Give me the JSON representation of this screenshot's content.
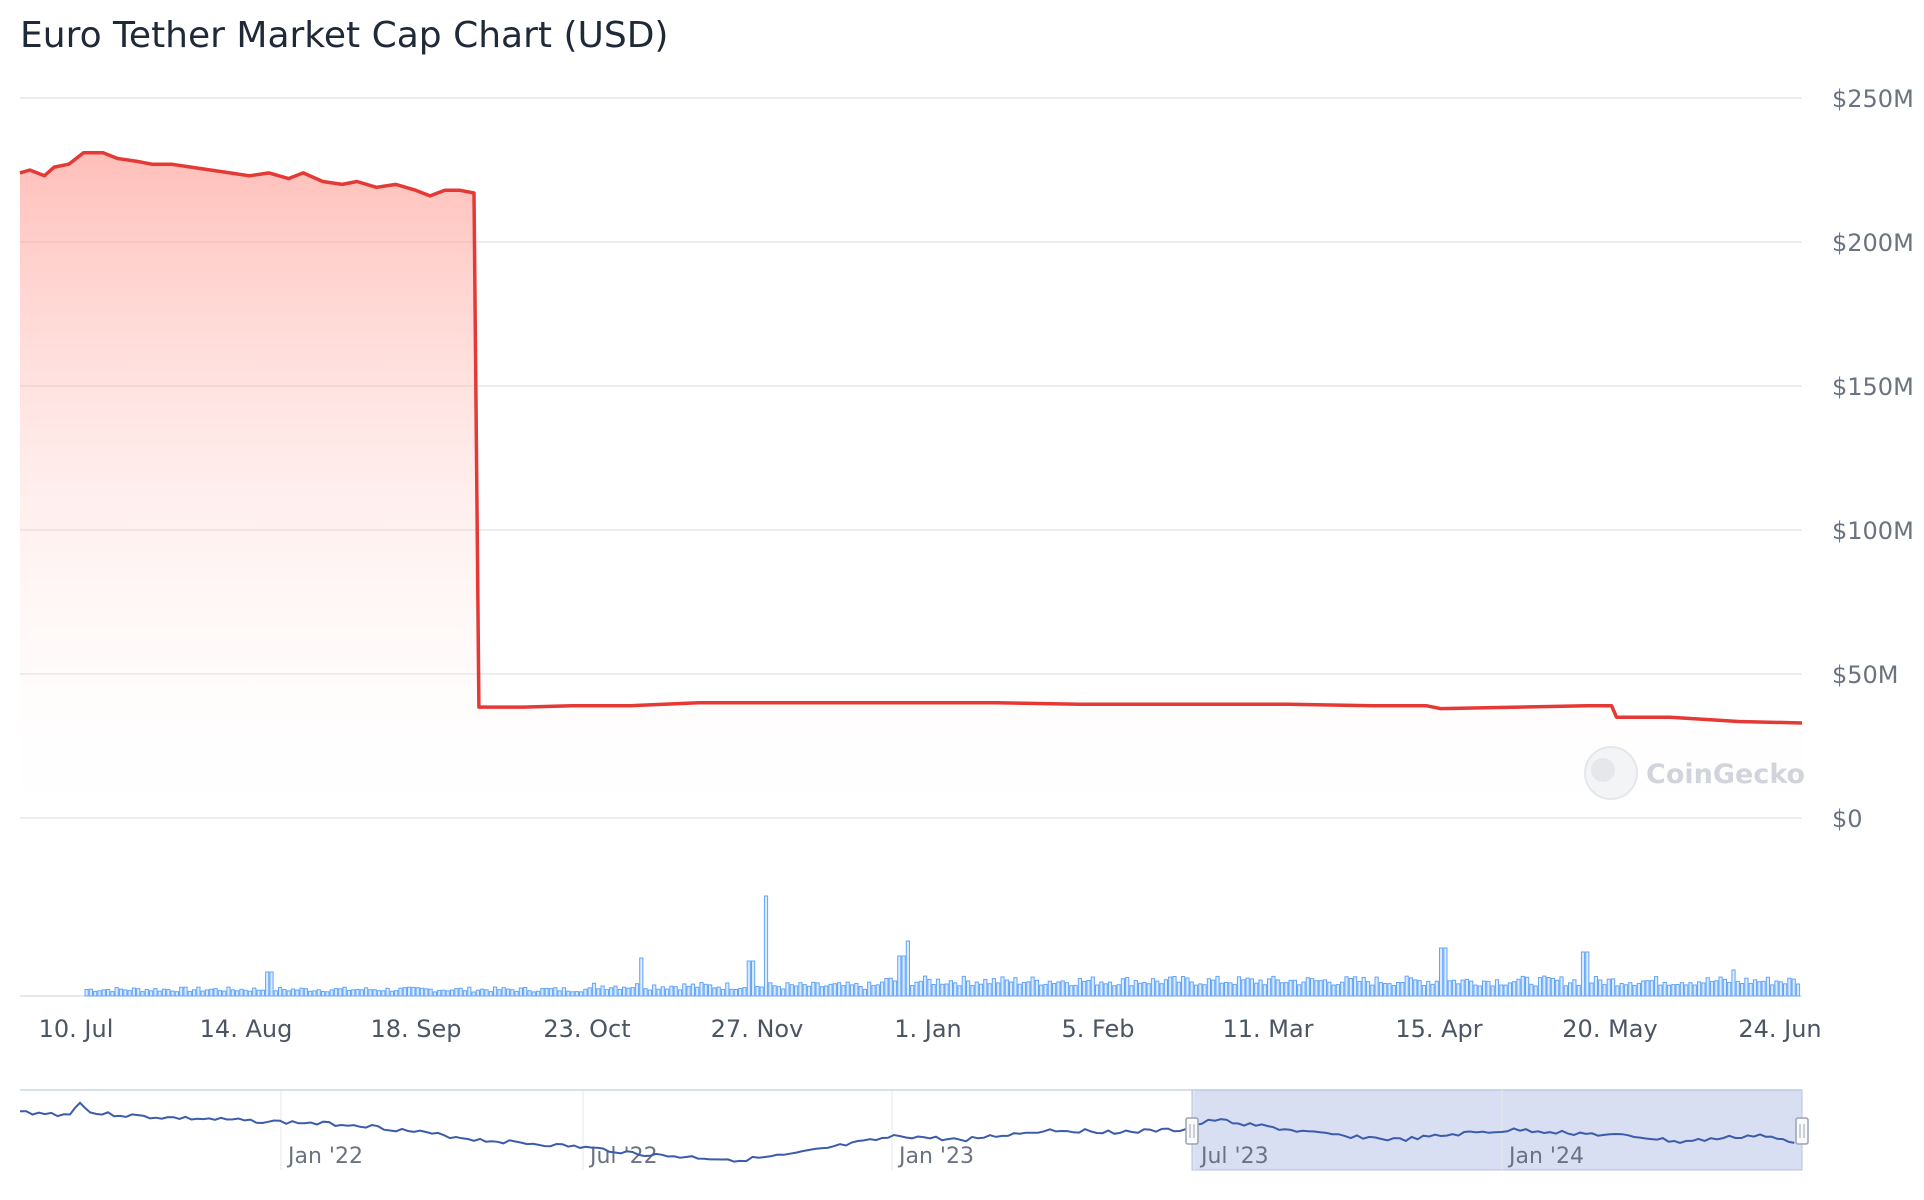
{
  "chart_data": {
    "type": "area",
    "title": "Euro Tether Market Cap Chart (USD)",
    "xlabel": "",
    "ylabel": "",
    "ylim": [
      0,
      250
    ],
    "y_unit": "M USD",
    "y_ticks": [
      "$0",
      "$50M",
      "$100M",
      "$150M",
      "$200M",
      "$250M"
    ],
    "y_tick_values": [
      0,
      50,
      100,
      150,
      200,
      250
    ],
    "x_ticks": [
      "10. Jul",
      "14. Aug",
      "18. Sep",
      "23. Oct",
      "27. Nov",
      "1. Jan",
      "5. Feb",
      "11. Mar",
      "15. Apr",
      "20. May",
      "24. Jun"
    ],
    "x_tick_dates": [
      "2023-07-10",
      "2023-08-14",
      "2023-09-18",
      "2023-10-23",
      "2023-11-27",
      "2024-01-01",
      "2024-02-05",
      "2024-03-11",
      "2024-04-15",
      "2024-05-20",
      "2024-06-24"
    ],
    "x_range": [
      "2023-06-29",
      "2024-06-28"
    ],
    "grid": true,
    "legend": "none",
    "series": [
      {
        "values_unit": "M USD",
        "color": "#e53935",
        "points": [
          [
            "2023-06-29",
            224
          ],
          [
            "2023-07-01",
            225
          ],
          [
            "2023-07-04",
            223
          ],
          [
            "2023-07-06",
            226
          ],
          [
            "2023-07-09",
            227
          ],
          [
            "2023-07-12",
            231
          ],
          [
            "2023-07-16",
            231
          ],
          [
            "2023-07-19",
            229
          ],
          [
            "2023-07-23",
            228
          ],
          [
            "2023-07-26",
            227
          ],
          [
            "2023-07-30",
            227
          ],
          [
            "2023-08-03",
            226
          ],
          [
            "2023-08-07",
            225
          ],
          [
            "2023-08-11",
            224
          ],
          [
            "2023-08-15",
            223
          ],
          [
            "2023-08-19",
            224
          ],
          [
            "2023-08-23",
            222
          ],
          [
            "2023-08-26",
            224
          ],
          [
            "2023-08-30",
            221
          ],
          [
            "2023-09-03",
            220
          ],
          [
            "2023-09-06",
            221
          ],
          [
            "2023-09-10",
            219
          ],
          [
            "2023-09-14",
            220
          ],
          [
            "2023-09-18",
            218
          ],
          [
            "2023-09-21",
            216
          ],
          [
            "2023-09-24",
            218
          ],
          [
            "2023-09-27",
            218
          ],
          [
            "2023-09-30",
            217
          ],
          [
            "2023-10-01",
            38.5
          ],
          [
            "2023-10-10",
            38.5
          ],
          [
            "2023-10-20",
            39
          ],
          [
            "2023-11-01",
            39
          ],
          [
            "2023-11-15",
            40
          ],
          [
            "2023-12-01",
            40
          ],
          [
            "2023-12-15",
            40
          ],
          [
            "2024-01-01",
            40
          ],
          [
            "2024-01-15",
            40
          ],
          [
            "2024-02-01",
            39.5
          ],
          [
            "2024-02-15",
            39.5
          ],
          [
            "2024-03-01",
            39.5
          ],
          [
            "2024-03-15",
            39.5
          ],
          [
            "2024-04-01",
            39
          ],
          [
            "2024-04-12",
            39
          ],
          [
            "2024-04-15",
            38
          ],
          [
            "2024-05-01",
            38.5
          ],
          [
            "2024-05-15",
            39
          ],
          [
            "2024-05-20",
            39
          ],
          [
            "2024-05-21",
            35
          ],
          [
            "2024-06-01",
            35
          ],
          [
            "2024-06-15",
            33.5
          ],
          [
            "2024-06-28",
            33
          ]
        ]
      }
    ],
    "volume_bars": true,
    "watermark": "CoinGecko",
    "navigator": {
      "ticks": [
        "Jan '22",
        "Jul '22",
        "Jan '23",
        "Jul '23",
        "Jan '24"
      ],
      "selected_range": [
        "2023-06-29",
        "2024-06-28"
      ]
    }
  }
}
